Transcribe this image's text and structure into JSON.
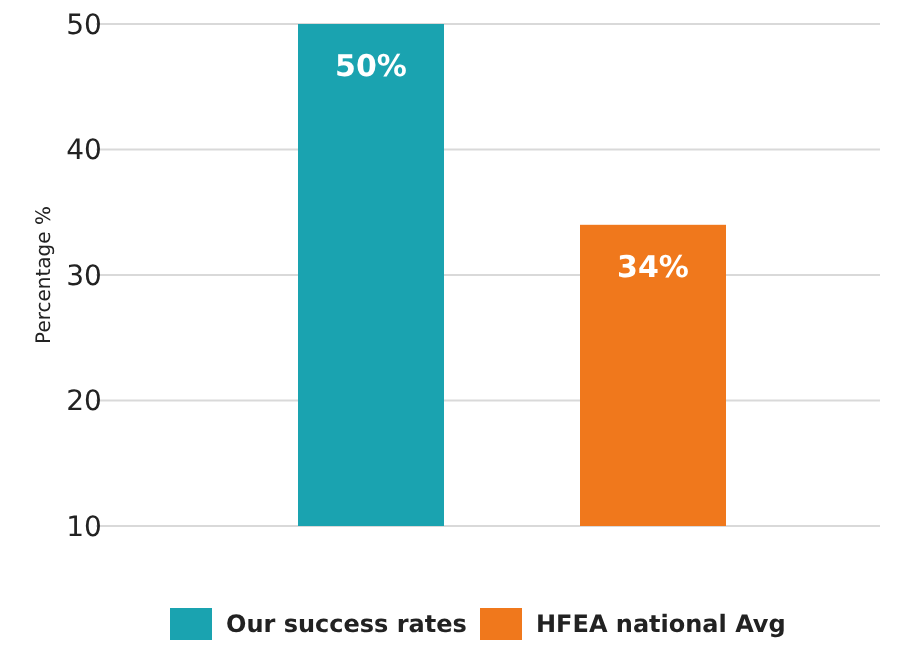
{
  "chart_data": {
    "type": "bar",
    "ylabel": "Percentage %",
    "categories": [
      null,
      null
    ],
    "series": [
      {
        "name": "Our success rates",
        "color": "#1aa3b0",
        "values": [
          50,
          null
        ],
        "value_labels": [
          "50%",
          null
        ]
      },
      {
        "name": "HFEA national Avg",
        "color": "#f0781c",
        "values": [
          null,
          34
        ],
        "value_labels": [
          null,
          "34%"
        ]
      }
    ],
    "ylim": [
      10,
      50
    ],
    "yticks": [
      10,
      20,
      30,
      40,
      50
    ],
    "grid": "y",
    "legend": "bottom"
  }
}
